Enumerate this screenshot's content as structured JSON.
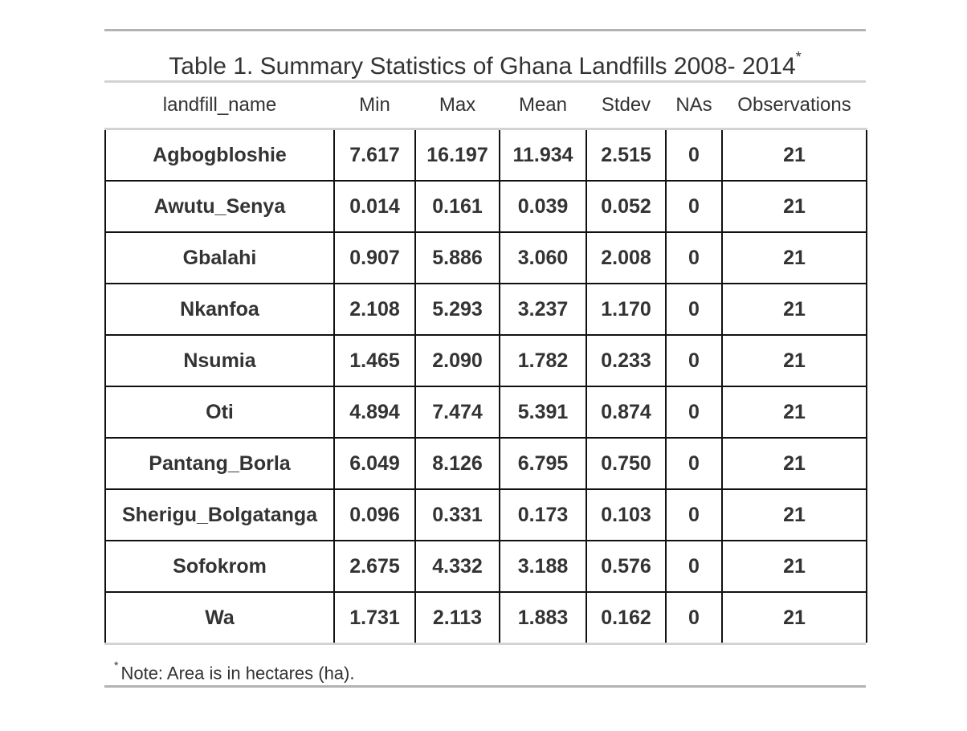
{
  "table": {
    "title": "Table 1. Summary Statistics of Ghana Landfills 2008- 2014",
    "title_marker": "*",
    "columns": [
      "landfill_name",
      "Min",
      "Max",
      "Mean",
      "Stdev",
      "NAs",
      "Observations"
    ],
    "rows": [
      [
        "Agbogbloshie",
        "7.617",
        "16.197",
        "11.934",
        "2.515",
        "0",
        "21"
      ],
      [
        "Awutu_Senya",
        "0.014",
        "0.161",
        "0.039",
        "0.052",
        "0",
        "21"
      ],
      [
        "Gbalahi",
        "0.907",
        "5.886",
        "3.060",
        "2.008",
        "0",
        "21"
      ],
      [
        "Nkanfoa",
        "2.108",
        "5.293",
        "3.237",
        "1.170",
        "0",
        "21"
      ],
      [
        "Nsumia",
        "1.465",
        "2.090",
        "1.782",
        "0.233",
        "0",
        "21"
      ],
      [
        "Oti",
        "4.894",
        "7.474",
        "5.391",
        "0.874",
        "0",
        "21"
      ],
      [
        "Pantang_Borla",
        "6.049",
        "8.126",
        "6.795",
        "0.750",
        "0",
        "21"
      ],
      [
        "Sherigu_Bolgatanga",
        "0.096",
        "0.331",
        "0.173",
        "0.103",
        "0",
        "21"
      ],
      [
        "Sofokrom",
        "2.675",
        "4.332",
        "3.188",
        "0.576",
        "0",
        "21"
      ],
      [
        "Wa",
        "1.731",
        "2.113",
        "1.883",
        "0.162",
        "0",
        "21"
      ]
    ],
    "footnote_marker": "*",
    "footnote": "Note: Area is in hectares (ha)."
  }
}
